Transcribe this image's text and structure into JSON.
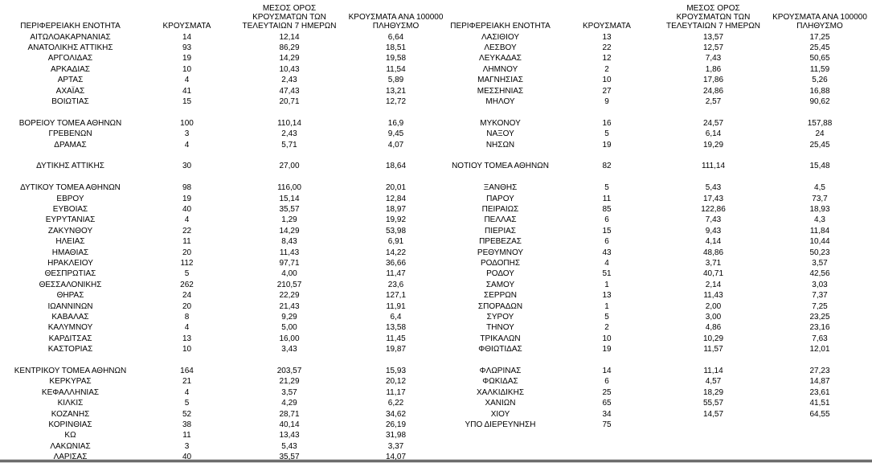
{
  "table": {
    "headers": [
      "ΠΕΡΙΦΕΡΕΙΑΚΗ ΕΝΟΤΗΤΑ",
      "ΚΡΟΥΣΜΑΤΑ",
      "ΜΕΣΟΣ ΟΡΟΣ ΚΡΟΥΣΜΑΤΩΝ ΤΩΝ ΤΕΛΕΥΤΑΙΩΝ 7 ΗΜΕΡΩΝ",
      "ΚΡΟΥΣΜΑΤΑ ΑΝΑ 100000 ΠΛΗΘΥΣΜΟ"
    ],
    "left": [
      [
        [
          "ΑΙΤΩΛΟΑΚΑΡΝΑΝΙΑΣ",
          "14",
          "12,14",
          "6,64"
        ],
        [
          "ΑΝΑΤΟΛΙΚΗΣ ΑΤΤΙΚΗΣ",
          "93",
          "86,29",
          "18,51"
        ],
        [
          "ΑΡΓΟΛΙΔΑΣ",
          "19",
          "14,29",
          "19,58"
        ],
        [
          "ΑΡΚΑΔΙΑΣ",
          "10",
          "10,43",
          "11,54"
        ],
        [
          "ΑΡΤΑΣ",
          "4",
          "2,43",
          "5,89"
        ],
        [
          "ΑΧΑΪΑΣ",
          "41",
          "47,43",
          "13,21"
        ],
        [
          "ΒΟΙΩΤΙΑΣ",
          "15",
          "20,71",
          "12,72"
        ]
      ],
      [
        [
          "ΒΟΡΕΙΟΥ ΤΟΜΕΑ ΑΘΗΝΩΝ",
          "100",
          "110,14",
          "16,9"
        ],
        [
          "ΓΡΕΒΕΝΩΝ",
          "3",
          "2,43",
          "9,45"
        ],
        [
          "ΔΡΑΜΑΣ",
          "4",
          "5,71",
          "4,07"
        ]
      ],
      [
        [
          "ΔΥΤΙΚΗΣ ΑΤΤΙΚΗΣ",
          "30",
          "27,00",
          "18,64"
        ]
      ],
      [
        [
          "ΔΥΤΙΚΟΥ ΤΟΜΕΑ ΑΘΗΝΩΝ",
          "98",
          "116,00",
          "20,01"
        ],
        [
          "ΕΒΡΟΥ",
          "19",
          "15,14",
          "12,84"
        ],
        [
          "ΕΥΒΟΙΑΣ",
          "40",
          "35,57",
          "18,97"
        ],
        [
          "ΕΥΡΥΤΑΝΙΑΣ",
          "4",
          "1,29",
          "19,92"
        ],
        [
          "ΖΑΚΥΝΘΟΥ",
          "22",
          "14,29",
          "53,98"
        ],
        [
          "ΗΛΕΙΑΣ",
          "11",
          "8,43",
          "6,91"
        ],
        [
          "ΗΜΑΘΙΑΣ",
          "20",
          "11,43",
          "14,22"
        ],
        [
          "ΗΡΑΚΛΕΙΟΥ",
          "112",
          "97,71",
          "36,66"
        ],
        [
          "ΘΕΣΠΡΩΤΙΑΣ",
          "5",
          "4,00",
          "11,47"
        ],
        [
          "ΘΕΣΣΑΛΟΝΙΚΗΣ",
          "262",
          "210,57",
          "23,6"
        ],
        [
          "ΘΗΡΑΣ",
          "24",
          "22,29",
          "127,1"
        ],
        [
          "ΙΩΑΝΝΙΝΩΝ",
          "20",
          "21,43",
          "11,91"
        ],
        [
          "ΚΑΒΑΛΑΣ",
          "8",
          "9,29",
          "6,4"
        ],
        [
          "ΚΑΛΥΜΝΟΥ",
          "4",
          "5,00",
          "13,58"
        ],
        [
          "ΚΑΡΔΙΤΣΑΣ",
          "13",
          "16,00",
          "11,45"
        ],
        [
          "ΚΑΣΤΟΡΙΑΣ",
          "10",
          "3,43",
          "19,87"
        ]
      ],
      [
        [
          "ΚΕΝΤΡΙΚΟΥ ΤΟΜΕΑ ΑΘΗΝΩΝ",
          "164",
          "203,57",
          "15,93"
        ],
        [
          "ΚΕΡΚΥΡΑΣ",
          "21",
          "21,29",
          "20,12"
        ],
        [
          "ΚΕΦΑΛΛΗΝΙΑΣ",
          "4",
          "3,57",
          "11,17"
        ],
        [
          "ΚΙΛΚΙΣ",
          "5",
          "4,29",
          "6,22"
        ],
        [
          "ΚΟΖΑΝΗΣ",
          "52",
          "28,71",
          "34,62"
        ],
        [
          "ΚΟΡΙΝΘΙΑΣ",
          "38",
          "40,14",
          "26,19"
        ],
        [
          "ΚΩ",
          "11",
          "13,43",
          "31,98"
        ],
        [
          "ΛΑΚΩΝΙΑΣ",
          "3",
          "5,43",
          "3,37"
        ],
        [
          "ΛΑΡΙΣΑΣ",
          "40",
          "35,57",
          "14,07"
        ]
      ]
    ],
    "right": [
      [
        [
          "ΛΑΣΙΘΙΟΥ",
          "13",
          "13,57",
          "17,25"
        ],
        [
          "ΛΕΣΒΟΥ",
          "22",
          "12,57",
          "25,45"
        ],
        [
          "ΛΕΥΚΑΔΑΣ",
          "12",
          "7,43",
          "50,65"
        ],
        [
          "ΛΗΜΝΟΥ",
          "2",
          "1,86",
          "11,59"
        ],
        [
          "ΜΑΓΝΗΣΙΑΣ",
          "10",
          "17,86",
          "5,26"
        ],
        [
          "ΜΕΣΣΗΝΙΑΣ",
          "27",
          "24,86",
          "16,88"
        ],
        [
          "ΜΗΛΟΥ",
          "9",
          "2,57",
          "90,62"
        ]
      ],
      [
        [
          "ΜΥΚΟΝΟΥ",
          "16",
          "24,57",
          "157,88"
        ],
        [
          "ΝΑΞΟΥ",
          "5",
          "6,14",
          "24"
        ],
        [
          "ΝΗΣΩΝ",
          "19",
          "19,29",
          "25,45"
        ]
      ],
      [
        [
          "ΝΟΤΙΟΥ ΤΟΜΕΑ ΑΘΗΝΩΝ",
          "82",
          "111,14",
          "15,48"
        ]
      ],
      [
        [
          "ΞΑΝΘΗΣ",
          "5",
          "5,43",
          "4,5"
        ],
        [
          "ΠΑΡΟΥ",
          "11",
          "17,43",
          "73,7"
        ],
        [
          "ΠΕΙΡΑΙΩΣ",
          "85",
          "122,86",
          "18,93"
        ],
        [
          "ΠΕΛΛΑΣ",
          "6",
          "7,43",
          "4,3"
        ],
        [
          "ΠΙΕΡΙΑΣ",
          "15",
          "9,43",
          "11,84"
        ],
        [
          "ΠΡΕΒΕΖΑΣ",
          "6",
          "4,14",
          "10,44"
        ],
        [
          "ΡΕΘΥΜΝΟΥ",
          "43",
          "48,86",
          "50,23"
        ],
        [
          "ΡΟΔΟΠΗΣ",
          "4",
          "3,71",
          "3,57"
        ],
        [
          "ΡΟΔΟΥ",
          "51",
          "40,71",
          "42,56"
        ],
        [
          "ΣΑΜΟΥ",
          "1",
          "2,14",
          "3,03"
        ],
        [
          "ΣΕΡΡΩΝ",
          "13",
          "11,43",
          "7,37"
        ],
        [
          "ΣΠΟΡΑΔΩΝ",
          "1",
          "2,00",
          "7,25"
        ],
        [
          "ΣΥΡΟΥ",
          "5",
          "3,00",
          "23,25"
        ],
        [
          "ΤΗΝΟΥ",
          "2",
          "4,86",
          "23,16"
        ],
        [
          "ΤΡΙΚΑΛΩΝ",
          "10",
          "10,29",
          "7,63"
        ],
        [
          "ΦΘΙΩΤΙΔΑΣ",
          "19",
          "11,57",
          "12,01"
        ]
      ],
      [
        [
          "ΦΛΩΡΙΝΑΣ",
          "14",
          "11,14",
          "27,23"
        ],
        [
          "ΦΩΚΙΔΑΣ",
          "6",
          "4,57",
          "14,87"
        ],
        [
          "ΧΑΛΚΙΔΙΚΗΣ",
          "25",
          "18,29",
          "23,61"
        ],
        [
          "ΧΑΝΙΩΝ",
          "65",
          "55,57",
          "41,51"
        ],
        [
          "ΧΙΟΥ",
          "34",
          "14,57",
          "64,55"
        ],
        [
          "ΥΠΟ ΔΙΕΡΕΥΝΗΣΗ",
          "75"
        ]
      ]
    ]
  }
}
